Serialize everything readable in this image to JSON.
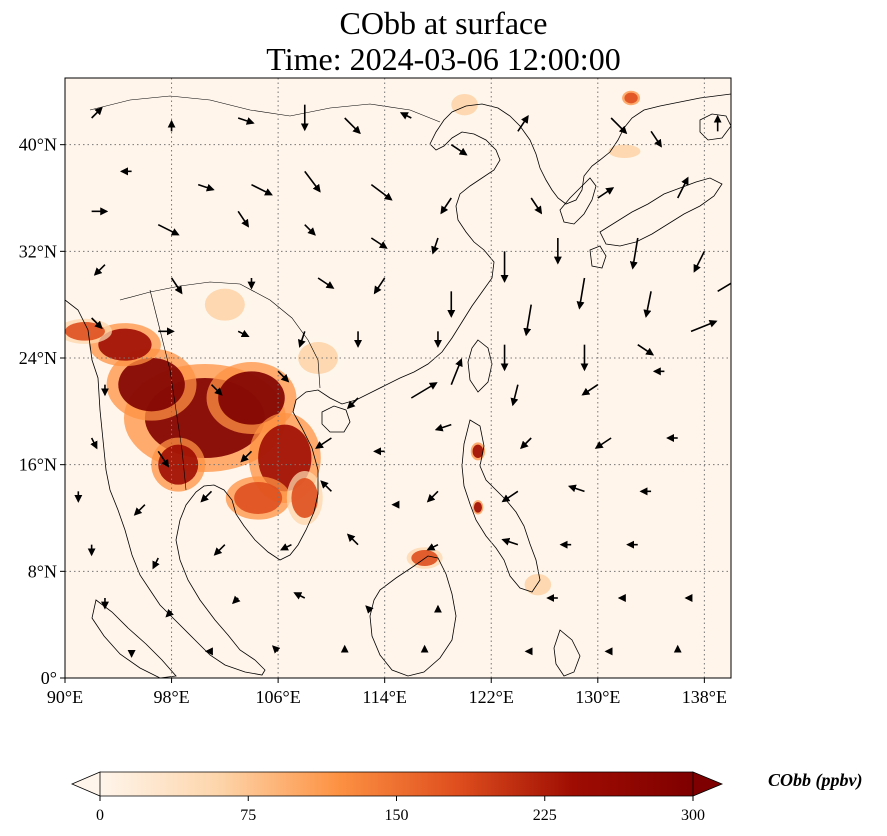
{
  "title": {
    "line1": "CObb at surface",
    "line2": "Time: 2024-03-06 12:00:00"
  },
  "map": {
    "lon_range": [
      90,
      140
    ],
    "lat_range": [
      0,
      45
    ],
    "lon_ticks": [
      {
        "value": 90,
        "label": "90°E"
      },
      {
        "value": 98,
        "label": "98°E"
      },
      {
        "value": 106,
        "label": "106°E"
      },
      {
        "value": 114,
        "label": "114°E"
      },
      {
        "value": 122,
        "label": "122°E"
      },
      {
        "value": 130,
        "label": "130°E"
      },
      {
        "value": 138,
        "label": "138°E"
      }
    ],
    "lat_ticks": [
      {
        "value": 0,
        "label": "0°"
      },
      {
        "value": 8,
        "label": "8°N"
      },
      {
        "value": 16,
        "label": "16°N"
      },
      {
        "value": 24,
        "label": "24°N"
      },
      {
        "value": 32,
        "label": "32°N"
      },
      {
        "value": 40,
        "label": "40°N"
      }
    ],
    "gridlines": true,
    "background_color": "#fff5eb"
  },
  "colorbar": {
    "label": "CObb (ppbv)",
    "min": 0,
    "max": 300,
    "extend": "both",
    "ticks": [
      {
        "value": 0,
        "label": "0"
      },
      {
        "value": 75,
        "label": "75"
      },
      {
        "value": 150,
        "label": "150"
      },
      {
        "value": 225,
        "label": "225"
      },
      {
        "value": 300,
        "label": "300"
      }
    ],
    "colors": [
      "#fff5eb",
      "#fdd5ab",
      "#fd9243",
      "#df4f1e",
      "#9e0c02",
      "#7f0000"
    ]
  },
  "plumes": [
    {
      "lon": 100.5,
      "lat": 19.5,
      "rlon": 4.5,
      "rlat": 3.0,
      "value": 300
    },
    {
      "lon": 96.5,
      "lat": 22.0,
      "rlon": 2.5,
      "rlat": 2.0,
      "value": 300
    },
    {
      "lon": 94.5,
      "lat": 25.0,
      "rlon": 2.0,
      "rlat": 1.2,
      "value": 260
    },
    {
      "lon": 104.0,
      "lat": 21.0,
      "rlon": 2.5,
      "rlat": 2.0,
      "value": 280
    },
    {
      "lon": 106.5,
      "lat": 16.5,
      "rlon": 2.0,
      "rlat": 2.5,
      "value": 260
    },
    {
      "lon": 104.5,
      "lat": 13.5,
      "rlon": 1.8,
      "rlat": 1.2,
      "value": 200
    },
    {
      "lon": 108.0,
      "lat": 13.5,
      "rlon": 1.0,
      "rlat": 1.5,
      "value": 180
    },
    {
      "lon": 98.5,
      "lat": 16.0,
      "rlon": 1.5,
      "rlat": 1.5,
      "value": 220
    },
    {
      "lon": 91.5,
      "lat": 26.0,
      "rlon": 1.5,
      "rlat": 0.7,
      "value": 150
    },
    {
      "lon": 121.0,
      "lat": 17.0,
      "rlon": 0.4,
      "rlat": 0.5,
      "value": 230
    },
    {
      "lon": 121.0,
      "lat": 12.8,
      "rlon": 0.3,
      "rlat": 0.4,
      "value": 220
    },
    {
      "lon": 117.0,
      "lat": 9.0,
      "rlon": 1.0,
      "rlat": 0.6,
      "value": 180
    },
    {
      "lon": 132.5,
      "lat": 43.5,
      "rlon": 0.5,
      "rlat": 0.4,
      "value": 200
    },
    {
      "lon": 132.0,
      "lat": 39.5,
      "rlon": 1.2,
      "rlat": 0.5,
      "value": 60
    },
    {
      "lon": 125.5,
      "lat": 7.0,
      "rlon": 1.0,
      "rlat": 0.8,
      "value": 50
    },
    {
      "lon": 109.0,
      "lat": 24.0,
      "rlon": 1.5,
      "rlat": 1.2,
      "value": 60
    },
    {
      "lon": 120.0,
      "lat": 43.0,
      "rlon": 1.0,
      "rlat": 0.8,
      "value": 40
    },
    {
      "lon": 102.0,
      "lat": 28.0,
      "rlon": 1.5,
      "rlat": 1.2,
      "value": 45
    }
  ],
  "wind_vectors": [
    {
      "lon": 92,
      "lat": 42,
      "u": 2,
      "v": 2
    },
    {
      "lon": 98,
      "lat": 41,
      "u": 0,
      "v": 2
    },
    {
      "lon": 103,
      "lat": 42,
      "u": 3,
      "v": -1
    },
    {
      "lon": 108,
      "lat": 43,
      "u": 0,
      "v": -5
    },
    {
      "lon": 111,
      "lat": 42,
      "u": 3,
      "v": -3
    },
    {
      "lon": 116,
      "lat": 42,
      "u": -2,
      "v": 1
    },
    {
      "lon": 119,
      "lat": 40,
      "u": 3,
      "v": -2
    },
    {
      "lon": 124,
      "lat": 41,
      "u": 2,
      "v": 3
    },
    {
      "lon": 131,
      "lat": 42,
      "u": 3,
      "v": -3
    },
    {
      "lon": 134,
      "lat": 41,
      "u": 2,
      "v": -3
    },
    {
      "lon": 139,
      "lat": 41,
      "u": 0,
      "v": 3
    },
    {
      "lon": 95,
      "lat": 38,
      "u": -2,
      "v": 0
    },
    {
      "lon": 100,
      "lat": 37,
      "u": 3,
      "v": -1
    },
    {
      "lon": 104,
      "lat": 37,
      "u": 4,
      "v": -2
    },
    {
      "lon": 108,
      "lat": 38,
      "u": 3,
      "v": -4
    },
    {
      "lon": 113,
      "lat": 37,
      "u": 4,
      "v": -3
    },
    {
      "lon": 119,
      "lat": 36,
      "u": -2,
      "v": -3
    },
    {
      "lon": 125,
      "lat": 36,
      "u": 2,
      "v": -3
    },
    {
      "lon": 130,
      "lat": 36,
      "u": 3,
      "v": 2
    },
    {
      "lon": 136,
      "lat": 36,
      "u": 2,
      "v": 4
    },
    {
      "lon": 92,
      "lat": 35,
      "u": 3,
      "v": 0
    },
    {
      "lon": 97,
      "lat": 34,
      "u": 4,
      "v": -2
    },
    {
      "lon": 103,
      "lat": 35,
      "u": 2,
      "v": -3
    },
    {
      "lon": 108,
      "lat": 34,
      "u": 2,
      "v": -2
    },
    {
      "lon": 113,
      "lat": 33,
      "u": 3,
      "v": -2
    },
    {
      "lon": 118,
      "lat": 33,
      "u": -1,
      "v": -3
    },
    {
      "lon": 123,
      "lat": 32,
      "u": 0,
      "v": -6
    },
    {
      "lon": 127,
      "lat": 33,
      "u": 0,
      "v": -5
    },
    {
      "lon": 133,
      "lat": 33,
      "u": -1,
      "v": -6
    },
    {
      "lon": 138,
      "lat": 32,
      "u": -2,
      "v": -4
    },
    {
      "lon": 93,
      "lat": 31,
      "u": -2,
      "v": -2
    },
    {
      "lon": 98,
      "lat": 30,
      "u": 2,
      "v": -3
    },
    {
      "lon": 104,
      "lat": 30,
      "u": 0,
      "v": -2
    },
    {
      "lon": 109,
      "lat": 30,
      "u": 3,
      "v": -2
    },
    {
      "lon": 114,
      "lat": 30,
      "u": -2,
      "v": -3
    },
    {
      "lon": 119,
      "lat": 29,
      "u": 0,
      "v": -5
    },
    {
      "lon": 125,
      "lat": 28,
      "u": -1,
      "v": -6
    },
    {
      "lon": 129,
      "lat": 30,
      "u": -1,
      "v": -6
    },
    {
      "lon": 134,
      "lat": 29,
      "u": -1,
      "v": -5
    },
    {
      "lon": 139,
      "lat": 29,
      "u": 5,
      "v": 3
    },
    {
      "lon": 92,
      "lat": 27,
      "u": 2,
      "v": -2
    },
    {
      "lon": 97,
      "lat": 26,
      "u": 3,
      "v": 0
    },
    {
      "lon": 103,
      "lat": 26,
      "u": 2,
      "v": -1
    },
    {
      "lon": 108,
      "lat": 26,
      "u": -1,
      "v": -3
    },
    {
      "lon": 112,
      "lat": 26,
      "u": 0,
      "v": -3
    },
    {
      "lon": 118,
      "lat": 26,
      "u": 0,
      "v": -3
    },
    {
      "lon": 123,
      "lat": 25,
      "u": 0,
      "v": -5
    },
    {
      "lon": 129,
      "lat": 25,
      "u": 0,
      "v": -5
    },
    {
      "lon": 133,
      "lat": 25,
      "u": 3,
      "v": -2
    },
    {
      "lon": 137,
      "lat": 26,
      "u": 5,
      "v": 2
    },
    {
      "lon": 93,
      "lat": 22,
      "u": 0,
      "v": -2
    },
    {
      "lon": 101,
      "lat": 22,
      "u": 2,
      "v": -2
    },
    {
      "lon": 106,
      "lat": 23,
      "u": 2,
      "v": -2
    },
    {
      "lon": 112,
      "lat": 21,
      "u": -2,
      "v": -2
    },
    {
      "lon": 116,
      "lat": 21,
      "u": 5,
      "v": 3
    },
    {
      "lon": 119,
      "lat": 22,
      "u": 2,
      "v": 5
    },
    {
      "lon": 124,
      "lat": 22,
      "u": -1,
      "v": -4
    },
    {
      "lon": 130,
      "lat": 22,
      "u": -3,
      "v": -2
    },
    {
      "lon": 135,
      "lat": 23,
      "u": -2,
      "v": 0
    },
    {
      "lon": 92,
      "lat": 18,
      "u": 1,
      "v": -2
    },
    {
      "lon": 97,
      "lat": 17,
      "u": 2,
      "v": -3
    },
    {
      "lon": 104,
      "lat": 17,
      "u": -2,
      "v": -2
    },
    {
      "lon": 110,
      "lat": 18,
      "u": -3,
      "v": -2
    },
    {
      "lon": 114,
      "lat": 17,
      "u": -2,
      "v": 0
    },
    {
      "lon": 119,
      "lat": 19,
      "u": -3,
      "v": -1
    },
    {
      "lon": 125,
      "lat": 18,
      "u": -2,
      "v": -2
    },
    {
      "lon": 131,
      "lat": 18,
      "u": -3,
      "v": -2
    },
    {
      "lon": 136,
      "lat": 18,
      "u": -2,
      "v": 0
    },
    {
      "lon": 91,
      "lat": 14,
      "u": 0,
      "v": -2
    },
    {
      "lon": 96,
      "lat": 13,
      "u": -2,
      "v": -2
    },
    {
      "lon": 101,
      "lat": 14,
      "u": -2,
      "v": -2
    },
    {
      "lon": 110,
      "lat": 14,
      "u": -2,
      "v": 2
    },
    {
      "lon": 115,
      "lat": 13,
      "u": -1,
      "v": 0
    },
    {
      "lon": 118,
      "lat": 14,
      "u": -2,
      "v": -2
    },
    {
      "lon": 124,
      "lat": 14,
      "u": -3,
      "v": -2
    },
    {
      "lon": 129,
      "lat": 14,
      "u": -3,
      "v": 1
    },
    {
      "lon": 134,
      "lat": 14,
      "u": -2,
      "v": 0
    },
    {
      "lon": 92,
      "lat": 10,
      "u": 0,
      "v": -2
    },
    {
      "lon": 97,
      "lat": 9,
      "u": -1,
      "v": -2
    },
    {
      "lon": 102,
      "lat": 10,
      "u": -2,
      "v": -2
    },
    {
      "lon": 107,
      "lat": 10,
      "u": -2,
      "v": -1
    },
    {
      "lon": 112,
      "lat": 10,
      "u": -2,
      "v": 2
    },
    {
      "lon": 118,
      "lat": 10,
      "u": -2,
      "v": -1
    },
    {
      "lon": 124,
      "lat": 10,
      "u": -3,
      "v": 1
    },
    {
      "lon": 128,
      "lat": 10,
      "u": -2,
      "v": 0
    },
    {
      "lon": 133,
      "lat": 10,
      "u": -2,
      "v": 0
    },
    {
      "lon": 93,
      "lat": 6,
      "u": 0,
      "v": -2
    },
    {
      "lon": 98,
      "lat": 5,
      "u": -1,
      "v": -1
    },
    {
      "lon": 103,
      "lat": 6,
      "u": -1,
      "v": -1
    },
    {
      "lon": 108,
      "lat": 6,
      "u": -2,
      "v": 1
    },
    {
      "lon": 113,
      "lat": 5,
      "u": -1,
      "v": 1
    },
    {
      "lon": 118,
      "lat": 5,
      "u": 0,
      "v": 1
    },
    {
      "lon": 127,
      "lat": 6,
      "u": -2,
      "v": 0
    },
    {
      "lon": 132,
      "lat": 6,
      "u": -1,
      "v": 0
    },
    {
      "lon": 137,
      "lat": 6,
      "u": -1,
      "v": 0
    },
    {
      "lon": 95,
      "lat": 2,
      "u": 0,
      "v": -1
    },
    {
      "lon": 101,
      "lat": 2,
      "u": -1,
      "v": 0
    },
    {
      "lon": 106,
      "lat": 2,
      "u": -1,
      "v": 1
    },
    {
      "lon": 111,
      "lat": 2,
      "u": 0,
      "v": 1
    },
    {
      "lon": 117,
      "lat": 2,
      "u": 0,
      "v": 1
    },
    {
      "lon": 125,
      "lat": 2,
      "u": -1,
      "v": 0
    },
    {
      "lon": 131,
      "lat": 2,
      "u": -1,
      "v": 0
    },
    {
      "lon": 136,
      "lat": 2,
      "u": 0,
      "v": 1
    }
  ]
}
